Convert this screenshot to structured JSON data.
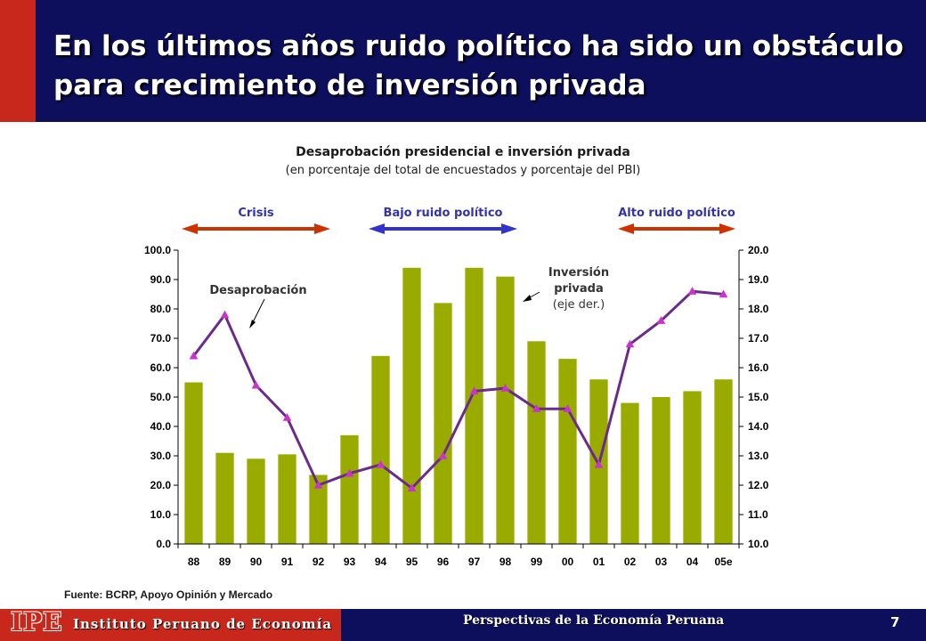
{
  "header": {
    "title": "En los últimos años ruido político ha sido un obstáculo para crecimiento de inversión privada"
  },
  "source": "Fuente: BCRP, Apoyo Opinión y Mercado",
  "footer": {
    "logo": "IPE",
    "institute": "Instituto Peruano de Economía",
    "center": "Perspectivas de la Economía Peruana",
    "page": "7"
  },
  "colors": {
    "header_bg": "#0d0f5c",
    "accent_red": "#c8281c",
    "bars": "#9aab00",
    "line": "#6b2a8c",
    "markers": "#cc33cc",
    "phase_blue": "#3333cc",
    "phase_red": "#cc3300",
    "phase_label": "#3333aa"
  },
  "chart_data": {
    "type": "bar",
    "title": "Desaprobación presidencial e inversión privada",
    "subtitle": "(en porcentaje del total de encuestados y porcentaje del PBI)",
    "categories": [
      "88",
      "89",
      "90",
      "91",
      "92",
      "93",
      "94",
      "95",
      "96",
      "97",
      "98",
      "99",
      "00",
      "01",
      "02",
      "03",
      "04",
      "05e"
    ],
    "ylim_left": [
      0,
      100
    ],
    "yticks_left": [
      "0.0",
      "10.0",
      "20.0",
      "30.0",
      "40.0",
      "50.0",
      "60.0",
      "70.0",
      "80.0",
      "90.0",
      "100.0"
    ],
    "ylim_right": [
      10,
      20
    ],
    "yticks_right": [
      "10.0",
      "11.0",
      "12.0",
      "13.0",
      "14.0",
      "15.0",
      "16.0",
      "17.0",
      "18.0",
      "19.0",
      "20.0"
    ],
    "grid": false,
    "series": [
      {
        "name": "Desaprobación",
        "type": "bar",
        "axis": "left",
        "values": [
          55,
          31,
          29,
          30.5,
          23.5,
          37,
          64,
          94,
          82,
          94,
          91,
          69,
          63,
          56,
          48,
          50,
          52,
          56
        ]
      },
      {
        "name": "Inversión privada",
        "type": "line",
        "axis": "right",
        "values": [
          16.4,
          17.8,
          15.4,
          14.3,
          12.0,
          12.4,
          12.7,
          11.9,
          13.0,
          15.2,
          15.3,
          14.6,
          14.6,
          12.7,
          16.8,
          17.6,
          18.6,
          18.5
        ]
      }
    ],
    "annotations": {
      "desaprobacion": "Desaprobación",
      "inversion_l1": "Inversión",
      "inversion_l2": "privada",
      "inversion_l3": "(eje der.)"
    },
    "phases": [
      {
        "label": "Crisis",
        "from": "88",
        "to": "92",
        "color": "#cc3300"
      },
      {
        "label": "Bajo ruido político",
        "from": "94",
        "to": "98",
        "color": "#3333cc"
      },
      {
        "label": "Alto ruido político",
        "from": "02",
        "to": "05e",
        "color": "#cc3300"
      }
    ]
  }
}
